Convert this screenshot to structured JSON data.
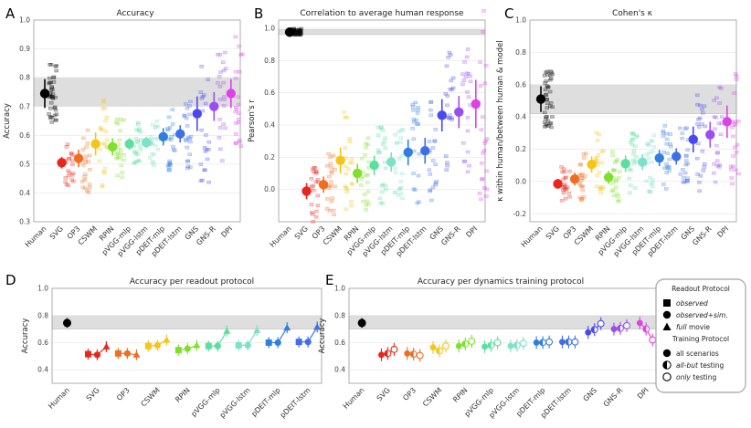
{
  "colors": {
    "Human": "#000000",
    "SVG": "#e8271b",
    "OP3": "#f06e22",
    "CSWM": "#f5c518",
    "RPIN": "#7fe02a",
    "pVGG-mlp": "#59e0a0",
    "pVGG-lstm": "#7fe0c8",
    "pDEIT-mlp": "#2f7fe0",
    "pDEIT-lstm": "#3f6fe8",
    "GNS": "#4a48f0",
    "GNS-R": "#9a4ef0",
    "DPI": "#e040e8"
  },
  "panels": [
    {
      "letter": "A",
      "title": "Accuracy",
      "ylabel": "Accuracy",
      "ylim": [
        0.3,
        1.0
      ],
      "yticks": [
        "0.3",
        "0.4",
        "0.5",
        "0.6",
        "0.7",
        "0.8",
        "0.9",
        "1.0"
      ],
      "band": [
        0.7,
        0.8
      ]
    },
    {
      "letter": "B",
      "title": "Correlation to average human response",
      "ylabel": "Pearson's r",
      "ylim": [
        -0.2,
        1.05
      ],
      "yticks": [
        "0.0",
        "0.2",
        "0.4",
        "0.6",
        "0.8",
        "1.0"
      ],
      "band": [
        0.96,
        0.99
      ]
    },
    {
      "letter": "C",
      "title": "Cohen's κ",
      "ylabel": "κ within human/between human & model",
      "ylim": [
        -0.25,
        1.0
      ],
      "yticks": [
        "-0.2",
        "0.0",
        "0.2",
        "0.4",
        "0.6",
        "0.8",
        "1.0"
      ],
      "band": [
        0.42,
        0.6
      ]
    },
    {
      "letter": "D",
      "title": "Accuracy per readout protocol",
      "ylabel": "Accuracy",
      "ylim": [
        0.3,
        1.0
      ],
      "yticks": [
        "0.4",
        "0.6",
        "0.8",
        "1.0"
      ],
      "band": [
        0.7,
        0.8
      ]
    },
    {
      "letter": "E",
      "title": "Accuracy per dynamics training protocol",
      "ylabel": "Accuracy",
      "ylim": [
        0.3,
        1.0
      ],
      "yticks": [
        "0.4",
        "0.6",
        "0.8",
        "1.0"
      ],
      "band": [
        0.7,
        0.8
      ]
    }
  ],
  "legend": {
    "readout_title": "Readout Protocol",
    "readout_items": [
      "observed",
      "observed+sim.",
      "full movie"
    ],
    "training_title": "Training Protocol",
    "training_items": [
      "all scenarios",
      "all-but testing",
      "only testing"
    ]
  },
  "chart_data": [
    {
      "type": "scatter",
      "title": "Accuracy",
      "ylabel": "Accuracy",
      "ylim": [
        0.3,
        1.0
      ],
      "categories": [
        "Human",
        "SVG",
        "OP3",
        "CSWM",
        "RPIN",
        "pVGG-mlp",
        "pVGG-lstm",
        "pDEIT-mlp",
        "pDEIT-lstm",
        "GNS",
        "GNS-R",
        "DPI"
      ],
      "values": [
        0.745,
        0.505,
        0.52,
        0.57,
        0.56,
        0.57,
        0.575,
        0.595,
        0.605,
        0.675,
        0.7,
        0.745
      ],
      "err": [
        0.05,
        0.02,
        0.03,
        0.04,
        0.03,
        0.02,
        0.02,
        0.03,
        0.03,
        0.06,
        0.05,
        0.05
      ],
      "band": [
        0.7,
        0.8
      ]
    },
    {
      "type": "scatter",
      "title": "Correlation to average human response",
      "ylabel": "Pearson's r",
      "ylim": [
        -0.2,
        1.05
      ],
      "categories": [
        "Human",
        "SVG",
        "OP3",
        "CSWM",
        "RPIN",
        "pVGG-mlp",
        "pVGG-lstm",
        "pDEIT-mlp",
        "pDEIT-lstm",
        "GNS",
        "GNS-R",
        "DPI"
      ],
      "values": [
        0.975,
        -0.01,
        0.03,
        0.18,
        0.1,
        0.15,
        0.17,
        0.23,
        0.24,
        0.46,
        0.48,
        0.53
      ],
      "err": [
        0.01,
        0.05,
        0.05,
        0.08,
        0.06,
        0.06,
        0.06,
        0.08,
        0.08,
        0.1,
        0.1,
        0.15
      ],
      "band": [
        0.96,
        0.99
      ]
    },
    {
      "type": "scatter",
      "title": "Cohen's κ",
      "ylabel": "κ within human/between human & model",
      "ylim": [
        -0.25,
        1.0
      ],
      "categories": [
        "Human",
        "SVG",
        "OP3",
        "CSWM",
        "RPIN",
        "pVGG-mlp",
        "pVGG-lstm",
        "pDEIT-mlp",
        "pDEIT-lstm",
        "GNS",
        "GNS-R",
        "DPI"
      ],
      "values": [
        0.51,
        -0.015,
        0.015,
        0.105,
        0.025,
        0.11,
        0.12,
        0.145,
        0.155,
        0.26,
        0.29,
        0.37
      ],
      "err": [
        0.08,
        0.03,
        0.04,
        0.05,
        0.04,
        0.05,
        0.05,
        0.05,
        0.05,
        0.08,
        0.08,
        0.1
      ],
      "band": [
        0.42,
        0.6
      ]
    },
    {
      "type": "scatter",
      "title": "Accuracy per readout protocol",
      "ylabel": "Accuracy",
      "ylim": [
        0.3,
        1.0
      ],
      "categories": [
        "Human",
        "SVG",
        "OP3",
        "CSWM",
        "RPIN",
        "pVGG-mlp",
        "pVGG-lstm",
        "pDEIT-mlp",
        "pDEIT-lstm"
      ],
      "series": [
        {
          "name": "observed",
          "values": [
            0.745,
            0.515,
            0.52,
            0.575,
            0.545,
            0.575,
            0.58,
            0.6,
            0.605
          ]
        },
        {
          "name": "observed+sim.",
          "values": [
            null,
            0.51,
            0.52,
            0.58,
            0.555,
            0.575,
            0.58,
            0.6,
            0.605
          ]
        },
        {
          "name": "full movie",
          "values": [
            null,
            0.57,
            0.51,
            0.62,
            0.58,
            0.685,
            0.69,
            0.71,
            0.715
          ]
        }
      ],
      "band": [
        0.7,
        0.8
      ]
    },
    {
      "type": "scatter",
      "title": "Accuracy per dynamics training protocol",
      "ylabel": "Accuracy",
      "ylim": [
        0.3,
        1.0
      ],
      "categories": [
        "Human",
        "SVG",
        "OP3",
        "CSWM",
        "RPIN",
        "pVGG-mlp",
        "pVGG-lstm",
        "pDEIT-mlp",
        "pDEIT-lstm",
        "GNS",
        "GNS-R",
        "DPI"
      ],
      "series": [
        {
          "name": "all scenarios",
          "values": [
            0.745,
            0.51,
            0.52,
            0.565,
            0.575,
            0.57,
            0.575,
            0.6,
            0.605,
            0.675,
            0.7,
            0.745
          ]
        },
        {
          "name": "all-but testing",
          "values": [
            null,
            0.52,
            0.515,
            0.54,
            0.59,
            0.58,
            0.58,
            0.6,
            0.605,
            0.695,
            0.705,
            0.7
          ]
        },
        {
          "name": "only testing",
          "values": [
            null,
            0.55,
            0.505,
            0.575,
            0.61,
            0.6,
            0.595,
            0.605,
            0.605,
            0.74,
            0.725,
            0.62
          ]
        }
      ],
      "band": [
        0.7,
        0.8
      ]
    }
  ]
}
